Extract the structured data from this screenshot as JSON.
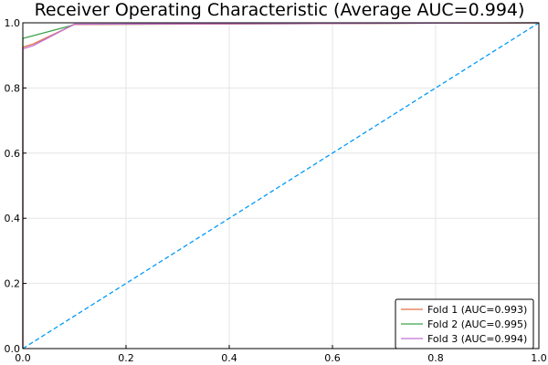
{
  "chart_data": {
    "type": "line",
    "title": "Receiver Operating Characteristic (Average AUC=0.994)",
    "xlabel": "",
    "ylabel": "",
    "xlim": [
      0,
      1
    ],
    "ylim": [
      0,
      1
    ],
    "x_ticks": [
      "0.0",
      "0.2",
      "0.4",
      "0.6",
      "0.8",
      "1.0"
    ],
    "y_ticks": [
      "0.0",
      "0.2",
      "0.4",
      "0.6",
      "0.8",
      "1.0"
    ],
    "grid": true,
    "legend_position": "bottom-right",
    "series": [
      {
        "name": "Fold 1 (AUC=0.993)",
        "color": "#e26f46",
        "x": [
          0,
          0,
          0.02,
          0.1,
          1.0
        ],
        "y": [
          0,
          0.925,
          0.935,
          0.995,
          1.0
        ]
      },
      {
        "name": "Fold 2 (AUC=0.995)",
        "color": "#3da44d",
        "x": [
          0,
          0,
          0.09,
          0.1,
          1.0
        ],
        "y": [
          0,
          0.952,
          0.99,
          0.995,
          1.0
        ]
      },
      {
        "name": "Fold 3 (AUC=0.994)",
        "color": "#c271d2",
        "x": [
          0,
          0,
          0.02,
          0.1,
          1.0
        ],
        "y": [
          0,
          0.92,
          0.93,
          0.996,
          1.0
        ]
      },
      {
        "name": "",
        "color": "#009af9",
        "dashed": true,
        "x": [
          0,
          1
        ],
        "y": [
          0,
          1
        ]
      }
    ]
  }
}
